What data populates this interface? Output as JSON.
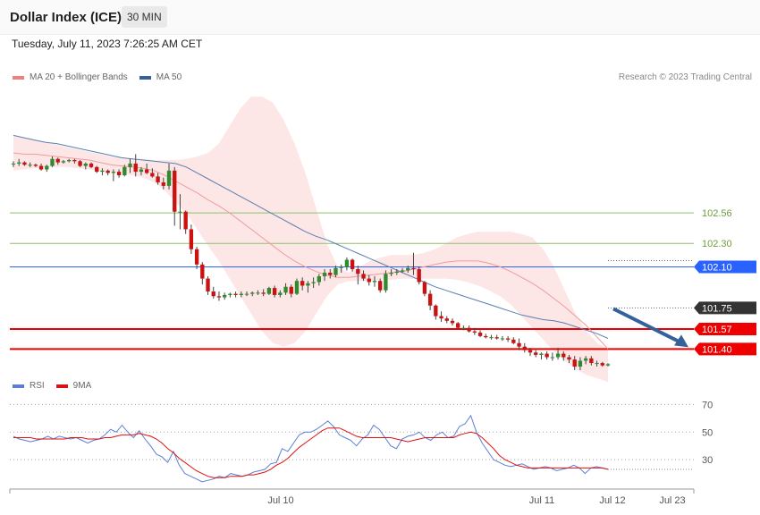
{
  "header": {
    "title": "Dollar Index (ICE)",
    "interval": "30 MIN",
    "datetime": "Tuesday, July 11, 2023 7:26:25 AM CET"
  },
  "legend_price": [
    {
      "label": "MA 20 + Bollinger Bands",
      "color": "#f08080"
    },
    {
      "label": "MA 50",
      "color": "#35619a"
    }
  ],
  "credit": "Research © 2023 Trading Central",
  "legend_rsi": [
    {
      "label": "RSI",
      "color": "#5b7fd6"
    },
    {
      "label": "9MA",
      "color": "#dd1111"
    }
  ],
  "chart_data": [
    {
      "type": "candlestick",
      "title": "Dollar Index (ICE)",
      "ylim": [
        101.25,
        103.65
      ],
      "candles": [
        [
          102.98,
          103.0,
          102.95,
          102.98
        ],
        [
          102.98,
          103.02,
          102.96,
          102.99
        ],
        [
          102.99,
          103.0,
          102.96,
          102.97
        ],
        [
          102.97,
          102.99,
          102.95,
          102.97
        ],
        [
          102.97,
          102.98,
          102.95,
          102.96
        ],
        [
          102.96,
          102.98,
          102.92,
          102.93
        ],
        [
          102.93,
          102.97,
          102.91,
          102.96
        ],
        [
          102.96,
          103.04,
          102.95,
          103.02
        ],
        [
          103.02,
          103.03,
          102.97,
          102.99
        ],
        [
          102.99,
          103.01,
          102.98,
          103.0
        ],
        [
          103.0,
          103.02,
          102.99,
          103.01
        ],
        [
          103.01,
          103.02,
          102.98,
          103.0
        ],
        [
          103.0,
          103.01,
          102.95,
          102.96
        ],
        [
          102.96,
          102.99,
          102.93,
          102.98
        ],
        [
          102.98,
          102.99,
          102.94,
          102.95
        ],
        [
          102.95,
          102.96,
          102.9,
          102.91
        ],
        [
          102.91,
          102.94,
          102.88,
          102.92
        ],
        [
          102.92,
          102.93,
          102.88,
          102.9
        ],
        [
          102.9,
          102.93,
          102.83,
          102.91
        ],
        [
          102.91,
          102.93,
          102.86,
          102.88
        ],
        [
          102.88,
          102.97,
          102.87,
          102.95
        ],
        [
          102.95,
          103.02,
          102.9,
          102.98
        ],
        [
          102.98,
          103.06,
          102.87,
          102.91
        ],
        [
          102.91,
          102.95,
          102.88,
          102.93
        ],
        [
          102.93,
          102.98,
          102.89,
          102.9
        ],
        [
          102.9,
          102.94,
          102.86,
          102.87
        ],
        [
          102.87,
          102.9,
          102.8,
          102.82
        ],
        [
          102.82,
          102.86,
          102.76,
          102.79
        ],
        [
          102.79,
          102.98,
          102.76,
          102.92
        ],
        [
          102.92,
          102.95,
          102.45,
          102.57
        ],
        [
          102.57,
          102.72,
          102.42,
          102.57
        ],
        [
          102.57,
          102.58,
          102.38,
          102.42
        ],
        [
          102.42,
          102.46,
          102.21,
          102.25
        ],
        [
          102.25,
          102.27,
          102.08,
          102.12
        ],
        [
          102.12,
          102.14,
          101.95,
          102.0
        ],
        [
          102.0,
          102.02,
          101.86,
          101.89
        ],
        [
          101.89,
          101.93,
          101.83,
          101.85
        ],
        [
          101.85,
          101.89,
          101.81,
          101.84
        ],
        [
          101.84,
          101.88,
          101.82,
          101.86
        ],
        [
          101.86,
          101.88,
          101.84,
          101.87
        ],
        [
          101.87,
          101.89,
          101.84,
          101.86
        ],
        [
          101.86,
          101.89,
          101.84,
          101.87
        ],
        [
          101.87,
          101.89,
          101.85,
          101.87
        ],
        [
          101.87,
          101.89,
          101.85,
          101.88
        ],
        [
          101.88,
          101.9,
          101.86,
          101.88
        ],
        [
          101.88,
          101.91,
          101.85,
          101.87
        ],
        [
          101.87,
          101.93,
          101.86,
          101.92
        ],
        [
          101.92,
          101.94,
          101.84,
          101.86
        ],
        [
          101.86,
          101.9,
          101.84,
          101.88
        ],
        [
          101.88,
          101.96,
          101.86,
          101.93
        ],
        [
          101.93,
          101.95,
          101.84,
          101.87
        ],
        [
          101.87,
          102.0,
          101.86,
          101.98
        ],
        [
          101.98,
          102.01,
          101.9,
          101.94
        ],
        [
          101.94,
          101.98,
          101.88,
          101.96
        ],
        [
          101.96,
          102.01,
          101.92,
          101.97
        ],
        [
          101.97,
          102.04,
          101.94,
          102.02
        ],
        [
          102.02,
          102.08,
          101.98,
          102.05
        ],
        [
          102.05,
          102.08,
          102.0,
          102.03
        ],
        [
          102.03,
          102.11,
          102.01,
          102.09
        ],
        [
          102.09,
          102.12,
          102.05,
          102.1
        ],
        [
          102.1,
          102.18,
          102.07,
          102.16
        ],
        [
          102.16,
          102.17,
          102.06,
          102.08
        ],
        [
          102.08,
          102.11,
          101.95,
          102.04
        ],
        [
          102.04,
          102.07,
          101.98,
          102.0
        ],
        [
          102.0,
          102.03,
          101.94,
          101.97
        ],
        [
          101.97,
          102.02,
          101.93,
          101.98
        ],
        [
          101.98,
          102.0,
          101.88,
          101.9
        ],
        [
          101.9,
          102.07,
          101.88,
          102.04
        ],
        [
          102.04,
          102.08,
          102.02,
          102.05
        ],
        [
          102.05,
          102.08,
          102.03,
          102.06
        ],
        [
          102.06,
          102.09,
          102.05,
          102.07
        ],
        [
          102.07,
          102.11,
          102.05,
          102.09
        ],
        [
          102.09,
          102.22,
          102.03,
          102.08
        ],
        [
          102.08,
          102.1,
          101.95,
          101.97
        ],
        [
          101.97,
          101.98,
          101.85,
          101.87
        ],
        [
          101.87,
          101.9,
          101.73,
          101.77
        ],
        [
          101.77,
          101.78,
          101.65,
          101.68
        ],
        [
          101.68,
          101.72,
          101.63,
          101.66
        ],
        [
          101.66,
          101.68,
          101.62,
          101.64
        ],
        [
          101.64,
          101.66,
          101.6,
          101.62
        ],
        [
          101.62,
          101.63,
          101.57,
          101.58
        ],
        [
          101.58,
          101.6,
          101.56,
          101.58
        ],
        [
          101.58,
          101.6,
          101.54,
          101.55
        ],
        [
          101.55,
          101.58,
          101.52,
          101.54
        ],
        [
          101.54,
          101.56,
          101.5,
          101.51
        ],
        [
          101.51,
          101.53,
          101.49,
          101.5
        ],
        [
          101.5,
          101.52,
          101.48,
          101.5
        ],
        [
          101.5,
          101.52,
          101.48,
          101.49
        ],
        [
          101.49,
          101.51,
          101.47,
          101.49
        ],
        [
          101.49,
          101.51,
          101.46,
          101.48
        ],
        [
          101.48,
          101.5,
          101.44,
          101.45
        ],
        [
          101.45,
          101.49,
          101.39,
          101.42
        ],
        [
          101.42,
          101.45,
          101.37,
          101.39
        ],
        [
          101.39,
          101.41,
          101.34,
          101.37
        ],
        [
          101.37,
          101.39,
          101.33,
          101.35
        ],
        [
          101.35,
          101.37,
          101.31,
          101.36
        ],
        [
          101.36,
          101.38,
          101.31,
          101.33
        ],
        [
          101.33,
          101.37,
          101.3,
          101.33
        ],
        [
          101.33,
          101.41,
          101.31,
          101.36
        ],
        [
          101.36,
          101.38,
          101.3,
          101.33
        ],
        [
          101.33,
          101.35,
          101.28,
          101.31
        ],
        [
          101.31,
          101.34,
          101.22,
          101.25
        ],
        [
          101.25,
          101.33,
          101.22,
          101.3
        ],
        [
          101.3,
          101.34,
          101.27,
          101.32
        ],
        [
          101.32,
          101.34,
          101.26,
          101.28
        ],
        [
          101.28,
          101.3,
          101.25,
          101.28
        ],
        [
          101.28,
          101.29,
          101.25,
          101.26
        ],
        [
          101.26,
          101.28,
          101.25,
          101.27
        ]
      ],
      "bands": {
        "upper": [
          103.22,
          103.2,
          103.18,
          103.16,
          103.14,
          103.12,
          103.1,
          103.08,
          103.06,
          103.04,
          103.03,
          103.02,
          103.02,
          103.01,
          103.01,
          103.01,
          103.02,
          103.04,
          103.07,
          103.15,
          103.3,
          103.45,
          103.55,
          103.55,
          103.5,
          103.35,
          103.15,
          102.9,
          102.6,
          102.3,
          102.1,
          102.05,
          102.1,
          102.15,
          102.18,
          102.2,
          102.2,
          102.2,
          102.22,
          102.25,
          102.3,
          102.35,
          102.38,
          102.4,
          102.4,
          102.4,
          102.4,
          102.38,
          102.35,
          102.25,
          102.1,
          101.9,
          101.7,
          101.55,
          101.45,
          101.4
        ],
        "lower": [
          102.92,
          102.93,
          102.94,
          102.95,
          102.95,
          102.95,
          102.94,
          102.93,
          102.92,
          102.91,
          102.9,
          102.88,
          102.86,
          102.82,
          102.75,
          102.65,
          102.55,
          102.42,
          102.28,
          102.15,
          102.0,
          101.85,
          101.7,
          101.55,
          101.45,
          101.42,
          101.45,
          101.55,
          101.7,
          101.85,
          101.95,
          101.98,
          101.98,
          101.98,
          101.99,
          101.99,
          102.0,
          102.0,
          102.0,
          102.0,
          102.0,
          101.99,
          101.97,
          101.94,
          101.9,
          101.85,
          101.78,
          101.68,
          101.58,
          101.48,
          101.38,
          101.3,
          101.23,
          101.18,
          101.15,
          101.12
        ],
        "ma20": [
          103.07,
          103.06,
          103.06,
          103.05,
          103.04,
          103.03,
          103.02,
          103.01,
          102.99,
          102.97,
          102.96,
          102.95,
          102.94,
          102.92,
          102.88,
          102.83,
          102.78,
          102.73,
          102.67,
          102.62,
          102.56,
          102.49,
          102.42,
          102.35,
          102.28,
          102.21,
          102.15,
          102.1,
          102.06,
          102.03,
          102.01,
          102.01,
          102.02,
          102.03,
          102.04,
          102.05,
          102.06,
          102.08,
          102.1,
          102.12,
          102.14,
          102.15,
          102.15,
          102.15,
          102.13,
          102.1,
          102.06,
          102.01,
          101.96,
          101.9,
          101.83,
          101.76,
          101.68,
          101.6,
          101.5,
          101.4
        ],
        "ma50": [
          103.22,
          103.2,
          103.18,
          103.16,
          103.15,
          103.13,
          103.11,
          103.09,
          103.07,
          103.05,
          103.03,
          103.02,
          103.01,
          103.0,
          102.99,
          102.98,
          102.95,
          102.9,
          102.85,
          102.8,
          102.75,
          102.7,
          102.65,
          102.6,
          102.55,
          102.5,
          102.45,
          102.4,
          102.36,
          102.33,
          102.29,
          102.25,
          102.21,
          102.17,
          102.13,
          102.09,
          102.05,
          102.01,
          101.97,
          101.93,
          101.9,
          101.87,
          101.84,
          101.81,
          101.78,
          101.75,
          101.72,
          101.69,
          101.67,
          101.65,
          101.64,
          101.62,
          101.59,
          101.56,
          101.53,
          101.49
        ]
      },
      "levels": [
        {
          "value": 102.56,
          "label": "102.56",
          "kind": "resistance",
          "color": "#8dc26f",
          "text_color": "#6e9e3c",
          "fill": "none"
        },
        {
          "value": 102.3,
          "label": "102.30",
          "kind": "resistance",
          "color": "#8dc26f",
          "text_color": "#6e9e3c",
          "fill": "none"
        },
        {
          "value": 102.1,
          "label": "102.10",
          "kind": "pivot",
          "color": "#2962ff",
          "text_color": "#ffffff",
          "fill": "#2962ff"
        },
        {
          "value": 101.75,
          "label": "101.75",
          "kind": "last-price",
          "color": "#555555",
          "text_color": "#ffffff",
          "fill": "#333333"
        },
        {
          "value": 101.57,
          "label": "101.57",
          "kind": "support",
          "color": "#ee0000",
          "text_color": "#ffffff",
          "fill": "#ee0000"
        },
        {
          "value": 101.4,
          "label": "101.40",
          "kind": "support",
          "color": "#ee0000",
          "text_color": "#ffffff",
          "fill": "#ee0000"
        }
      ],
      "forecast_arrow": {
        "from": 101.75,
        "to": 101.4,
        "color": "#35619a"
      }
    },
    {
      "type": "line",
      "title": "RSI",
      "ylim": [
        10,
        80
      ],
      "y_ticks": [
        70,
        50,
        30
      ],
      "x_ticks": [
        "Jul 10",
        "Jul 11",
        "Jul 12",
        "Jul 23"
      ],
      "series": [
        {
          "name": "RSI",
          "color": "#5b7fd6",
          "values": [
            47,
            45,
            44,
            43,
            44,
            45,
            47,
            45,
            47,
            46,
            45,
            46,
            44,
            42,
            44,
            45,
            48,
            52,
            50,
            55,
            50,
            46,
            51,
            45,
            40,
            34,
            32,
            28,
            36,
            26,
            20,
            18,
            16,
            14,
            15,
            16,
            18,
            17,
            20,
            19,
            18,
            19,
            21,
            22,
            23,
            27,
            28,
            38,
            36,
            42,
            48,
            50,
            50,
            52,
            55,
            58,
            54,
            48,
            46,
            44,
            40,
            45,
            48,
            55,
            52,
            46,
            40,
            38,
            45,
            47,
            48,
            50,
            46,
            44,
            48,
            50,
            46,
            47,
            54,
            56,
            62,
            50,
            42,
            36,
            30,
            28,
            26,
            25,
            26,
            27,
            25,
            23,
            24,
            25,
            24,
            22,
            23,
            24,
            26,
            24,
            20,
            24,
            25,
            24,
            23
          ]
        },
        {
          "name": "9MA",
          "color": "#dd1111",
          "values": [
            46,
            46,
            46,
            46,
            45,
            45,
            45,
            45,
            45,
            45,
            46,
            46,
            46,
            45,
            45,
            45,
            46,
            46,
            47,
            48,
            48,
            48,
            49,
            48,
            47,
            45,
            42,
            38,
            35,
            31,
            28,
            25,
            22,
            20,
            18,
            17,
            17,
            17,
            18,
            18,
            18,
            19,
            19,
            20,
            21,
            23,
            26,
            28,
            31,
            35,
            39,
            42,
            45,
            48,
            51,
            53,
            53,
            53,
            51,
            49,
            47,
            46,
            46,
            46,
            46,
            46,
            46,
            45,
            44,
            43,
            44,
            45,
            46,
            46,
            46,
            46,
            46,
            46,
            48,
            49,
            50,
            49,
            46,
            42,
            38,
            33,
            30,
            28,
            26,
            25,
            24,
            24,
            24,
            24,
            24,
            24,
            24,
            24,
            24,
            24,
            24,
            24,
            24,
            24,
            23
          ]
        }
      ]
    }
  ]
}
